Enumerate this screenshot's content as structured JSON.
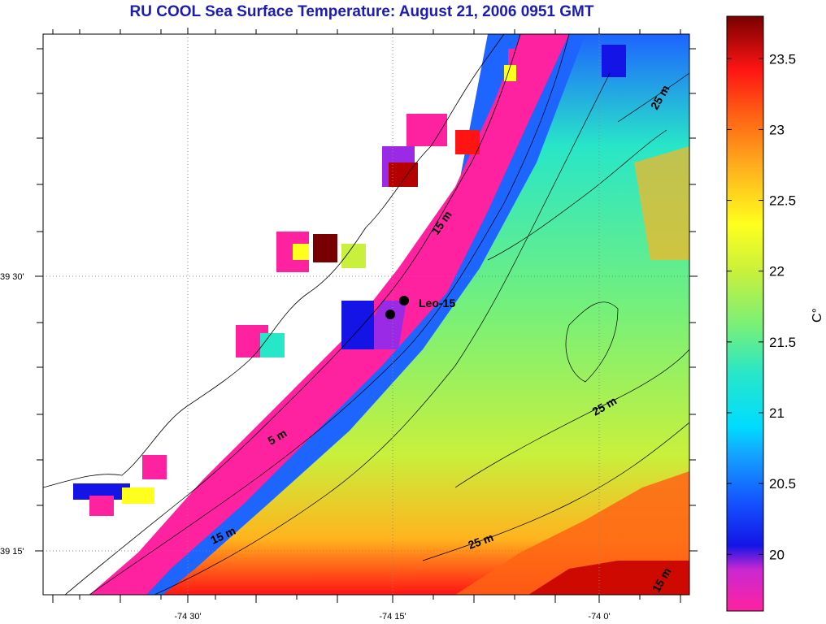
{
  "title": "RU COOL  Sea Surface Temperature:  August 21, 2006 0951 GMT",
  "map": {
    "lat_labels": [
      "39 30'",
      "39 15'"
    ],
    "lon_labels": [
      "-74 30'",
      "-74 15'",
      "-74 0'"
    ],
    "station": {
      "name": "Leo-15"
    },
    "contour_labels": [
      "25 m",
      "15 m",
      "5 m",
      "25 m",
      "15 m",
      "25 m",
      "15 m"
    ]
  },
  "colorbar": {
    "unit": "C°",
    "ticks": [
      "20",
      "20.5",
      "21",
      "21.5",
      "22",
      "22.5",
      "23",
      "23.5"
    ],
    "range": [
      19.6,
      23.8
    ],
    "colors": [
      "#ff22a0",
      "#9a2ae6",
      "#1414e6",
      "#1e64ff",
      "#00c8ff",
      "#28e6c8",
      "#78f078",
      "#c8f03c",
      "#ffff1e",
      "#ffb41e",
      "#ff6414",
      "#ff1414",
      "#c80000",
      "#780000"
    ]
  }
}
